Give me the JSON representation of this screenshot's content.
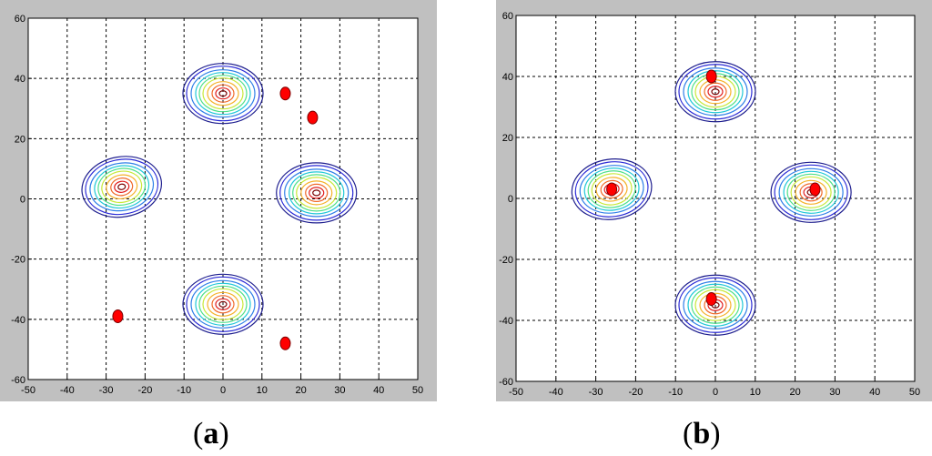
{
  "captions": {
    "a": "a",
    "b": "b",
    "open": "(",
    "close": ")"
  },
  "colors": {
    "panel_bg": "#c0c0c0",
    "plot_bg": "#ffffff",
    "grid": "#000000",
    "marker": "#ff0000",
    "contour_levels": [
      "#1f1f8f",
      "#2b2bd6",
      "#2f7fe8",
      "#22c8d8",
      "#4fe08a",
      "#c8e83a",
      "#f5b22a",
      "#f06a2a",
      "#e01e1e",
      "#7a0000"
    ]
  },
  "chart_data": [
    {
      "type": "contour",
      "panel": "a",
      "xlim": [
        -50,
        50
      ],
      "ylim": [
        -60,
        60
      ],
      "x_ticks": [
        -50,
        -40,
        -30,
        -20,
        -10,
        0,
        10,
        20,
        30,
        40,
        50
      ],
      "y_ticks": [
        -60,
        -40,
        -20,
        0,
        20,
        40,
        60
      ],
      "grid": true,
      "contour_centers": [
        {
          "x": 0,
          "y": 35
        },
        {
          "x": -26,
          "y": 4
        },
        {
          "x": 24,
          "y": 2
        },
        {
          "x": 0,
          "y": -35
        }
      ],
      "markers": [
        {
          "x": 16,
          "y": 35
        },
        {
          "x": 23,
          "y": 27
        },
        {
          "x": -27,
          "y": -39
        },
        {
          "x": 16,
          "y": -48
        }
      ]
    },
    {
      "type": "contour",
      "panel": "b",
      "xlim": [
        -50,
        50
      ],
      "ylim": [
        -60,
        60
      ],
      "x_ticks": [
        -50,
        -40,
        -30,
        -20,
        -10,
        0,
        10,
        20,
        30,
        40,
        50
      ],
      "y_ticks": [
        -60,
        -40,
        -20,
        0,
        20,
        40,
        60
      ],
      "grid": true,
      "contour_centers": [
        {
          "x": 0,
          "y": 35
        },
        {
          "x": -26,
          "y": 3
        },
        {
          "x": 24,
          "y": 2
        },
        {
          "x": 0,
          "y": -35
        }
      ],
      "markers": [
        {
          "x": -1,
          "y": 40
        },
        {
          "x": -26,
          "y": 3
        },
        {
          "x": 25,
          "y": 3
        },
        {
          "x": -1,
          "y": -33
        }
      ]
    }
  ]
}
